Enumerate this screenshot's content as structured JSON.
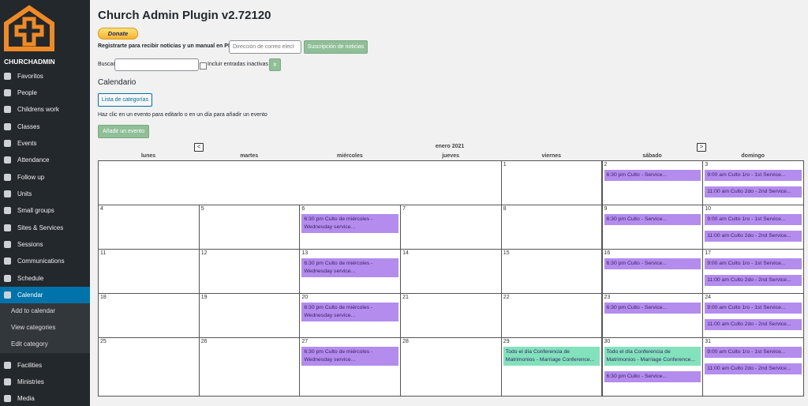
{
  "sidebar": {
    "brand": "CHURCHADMIN",
    "menu": [
      "Favoritos",
      "People",
      "Childrens work",
      "Classes",
      "Events",
      "Attendance",
      "Follow up",
      "Units",
      "Small groups",
      "Sites & Services",
      "Sessions",
      "Communications",
      "Schedule",
      "Calendar"
    ],
    "submenu": [
      "Add to calendar",
      "View categories",
      "Edit category"
    ],
    "menu_after": [
      "Facilities",
      "Ministries",
      "Media"
    ]
  },
  "header": {
    "title": "Church Admin Plugin v2.72120",
    "donate": "Donate"
  },
  "newsletter": {
    "label": "Registrarte para recibir noticias y un manual en PDF",
    "placeholder": "Dirección de correo elect",
    "button": "Suscripción de noticias"
  },
  "search": {
    "label": "Buscar",
    "checkbox_label": "Incluir entradas inactivas",
    "button": "Ir"
  },
  "calendar": {
    "heading": "Calendario",
    "categories_button": "Lista de categorías",
    "hint": "Haz clic en un evento para editarlo o en un día para añadir un evento",
    "add_button": "Añadir un evento",
    "prev": "<",
    "next": ">",
    "month": "enero 2021",
    "weekdays": [
      "lunes",
      "martes",
      "miércoles",
      "jueves",
      "viernes",
      "sábado",
      "domingo"
    ],
    "weeks": [
      [
        {
          "day": 1,
          "events": []
        },
        {
          "day": 2,
          "events": [
            {
              "text": "6:30 pm Culto - Service...",
              "color": "#b48cee"
            }
          ]
        },
        {
          "day": 3,
          "events": [
            {
              "text": "9:00 am Culto 1ro - 1st Service...",
              "color": "#b48cee"
            },
            {
              "text": "11:00 am Culto 2do - 2nd Service...",
              "color": "#b48cee"
            }
          ]
        }
      ],
      [
        {
          "day": 4,
          "events": []
        },
        {
          "day": 5,
          "events": []
        },
        {
          "day": 6,
          "events": [
            {
              "text": "6:30 pm Culto de miércoles - Wednesday service...",
              "color": "#b48cee"
            }
          ]
        },
        {
          "day": 7,
          "events": []
        },
        {
          "day": 8,
          "events": []
        },
        {
          "day": 9,
          "events": [
            {
              "text": "6:30 pm Culto - Service...",
              "color": "#b48cee"
            }
          ]
        },
        {
          "day": 10,
          "events": [
            {
              "text": "9:00 am Culto 1ro - 1st Service...",
              "color": "#b48cee"
            },
            {
              "text": "11:00 am Culto 2do - 2nd Service...",
              "color": "#b48cee"
            }
          ]
        }
      ],
      [
        {
          "day": 11,
          "events": []
        },
        {
          "day": 12,
          "events": []
        },
        {
          "day": 13,
          "events": [
            {
              "text": "6:30 pm Culto de miércoles - Wednesday service...",
              "color": "#b48cee"
            }
          ]
        },
        {
          "day": 14,
          "events": []
        },
        {
          "day": 15,
          "events": []
        },
        {
          "day": 16,
          "events": [
            {
              "text": "6:30 pm Culto - Service...",
              "color": "#b48cee"
            }
          ]
        },
        {
          "day": 17,
          "events": [
            {
              "text": "9:00 am Culto 1ro - 1st Service...",
              "color": "#b48cee"
            },
            {
              "text": "11:00 am Culto 2do - 2nd Service...",
              "color": "#b48cee"
            }
          ]
        }
      ],
      [
        {
          "day": 18,
          "events": []
        },
        {
          "day": 19,
          "events": []
        },
        {
          "day": 20,
          "events": [
            {
              "text": "6:30 pm Culto de miércoles - Wednesday service...",
              "color": "#b48cee"
            }
          ]
        },
        {
          "day": 21,
          "events": []
        },
        {
          "day": 22,
          "events": []
        },
        {
          "day": 23,
          "events": [
            {
              "text": "6:30 pm Culto - Service...",
              "color": "#b48cee"
            }
          ]
        },
        {
          "day": 24,
          "events": [
            {
              "text": "9:00 am Culto 1ro - 1st Service...",
              "color": "#b48cee"
            },
            {
              "text": "11:00 am Culto 2do - 2nd Service...",
              "color": "#b48cee"
            }
          ]
        }
      ],
      [
        {
          "day": 25,
          "events": []
        },
        {
          "day": 26,
          "events": []
        },
        {
          "day": 27,
          "events": [
            {
              "text": "6:30 pm Culto de miércoles - Wednesday service...",
              "color": "#b48cee"
            }
          ]
        },
        {
          "day": 28,
          "events": []
        },
        {
          "day": 29,
          "events": [
            {
              "text": "Todo el día Conferencia de Matrimonios - Marriage Conference...",
              "color": "#82e2bc"
            }
          ]
        },
        {
          "day": 30,
          "events": [
            {
              "text": "Todo el día Conferencia de Matrimonios - Marriage Conference...",
              "color": "#82e2bc"
            },
            {
              "text": "6:30 pm Culto - Service...",
              "color": "#b48cee"
            }
          ]
        },
        {
          "day": 31,
          "events": [
            {
              "text": "9:00 am Culto 1ro - 1st Service...",
              "color": "#b48cee"
            },
            {
              "text": "11:00 am Culto 2do - 2nd Service...",
              "color": "#b48cee"
            }
          ]
        }
      ]
    ]
  }
}
